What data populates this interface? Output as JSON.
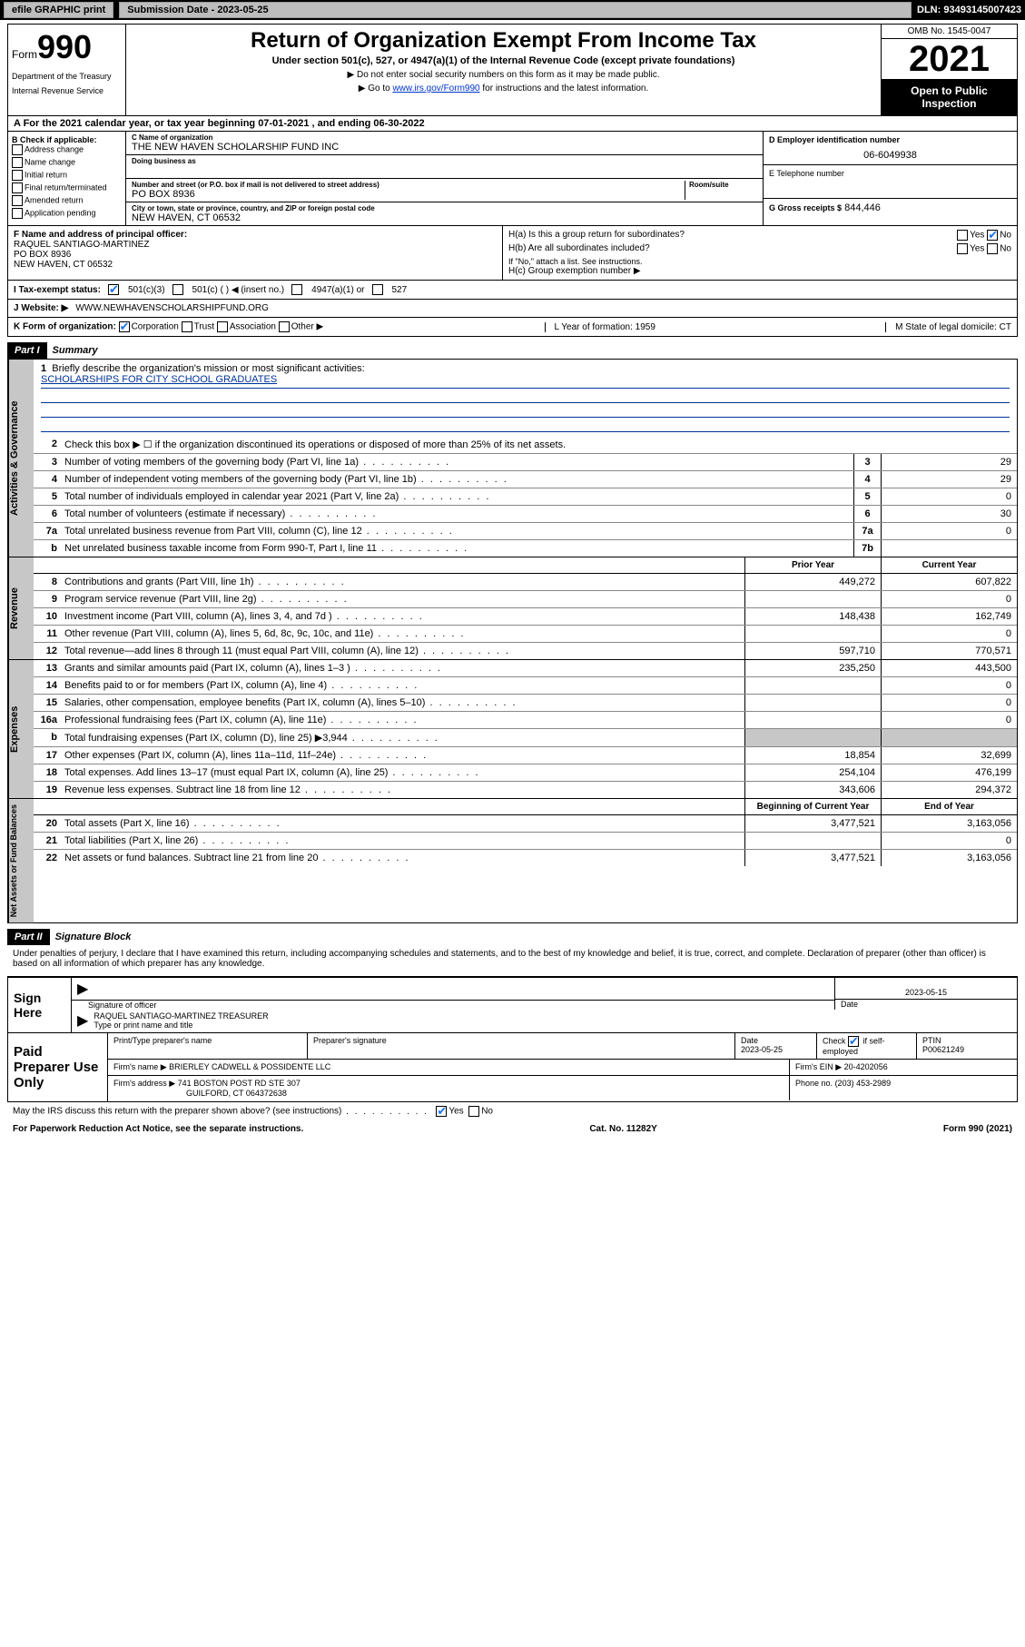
{
  "topbar": {
    "efile": "efile GRAPHIC print",
    "submission_label": "Submission Date - 2023-05-25",
    "dln": "DLN: 93493145007423"
  },
  "header": {
    "form_word": "Form",
    "form_num": "990",
    "dept": "Department of the Treasury",
    "irs": "Internal Revenue Service",
    "title": "Return of Organization Exempt From Income Tax",
    "subtitle": "Under section 501(c), 527, or 4947(a)(1) of the Internal Revenue Code (except private foundations)",
    "note1": "▶ Do not enter social security numbers on this form as it may be made public.",
    "note2_pre": "▶ Go to ",
    "note2_link": "www.irs.gov/Form990",
    "note2_post": " for instructions and the latest information.",
    "omb": "OMB No. 1545-0047",
    "year": "2021",
    "inspect": "Open to Public Inspection"
  },
  "period": {
    "a": "A For the 2021 calendar year, or tax year beginning 07-01-2021   , and ending 06-30-2022"
  },
  "sectionB": {
    "hdr": "B Check if applicable:",
    "opts": [
      "Address change",
      "Name change",
      "Initial return",
      "Final return/terminated",
      "Amended return",
      "Application pending"
    ]
  },
  "sectionC": {
    "name_lbl": "C Name of organization",
    "name": "THE NEW HAVEN SCHOLARSHIP FUND INC",
    "dba_lbl": "Doing business as",
    "street_lbl": "Number and street (or P.O. box if mail is not delivered to street address)",
    "room_lbl": "Room/suite",
    "street": "PO BOX 8936",
    "city_lbl": "City or town, state or province, country, and ZIP or foreign postal code",
    "city": "NEW HAVEN, CT  06532"
  },
  "sectionD": {
    "ein_lbl": "D Employer identification number",
    "ein": "06-6049938",
    "phone_lbl": "E Telephone number",
    "gross_lbl": "G Gross receipts $",
    "gross": "844,446"
  },
  "officer": {
    "f_lbl": "F Name and address of principal officer:",
    "name": "RAQUEL SANTIAGO-MARTINEZ",
    "addr1": "PO BOX 8936",
    "addr2": "NEW HAVEN, CT  06532"
  },
  "groupH": {
    "ha": "H(a)  Is this a group return for subordinates?",
    "hb": "H(b)  Are all subordinates included?",
    "hb_note": "If \"No,\" attach a list. See instructions.",
    "hc": "H(c)  Group exemption number ▶",
    "yes": "Yes",
    "no": "No"
  },
  "status": {
    "i_lbl": "I   Tax-exempt status:",
    "o501c3": "501(c)(3)",
    "o501c": "501(c) (  ) ◀ (insert no.)",
    "o4947": "4947(a)(1) or",
    "o527": "527"
  },
  "website": {
    "j_lbl": "J   Website: ▶",
    "url": "WWW.NEWHAVENSCHOLARSHIPFUND.ORG"
  },
  "orgrow": {
    "k_lbl": "K Form of organization:",
    "corp": "Corporation",
    "trust": "Trust",
    "assoc": "Association",
    "other": "Other ▶",
    "l_lbl": "L Year of formation: 1959",
    "m_lbl": "M State of legal domicile: CT"
  },
  "partI": {
    "hdr": "Part I",
    "title": "Summary"
  },
  "summary": {
    "q1": "Briefly describe the organization's mission or most significant activities:",
    "mission": "SCHOLARSHIPS FOR CITY SCHOOL GRADUATES",
    "q2": "Check this box ▶ ☐  if the organization discontinued its operations or disposed of more than 25% of its net assets.",
    "lines_gov": [
      {
        "n": "3",
        "t": "Number of voting members of the governing body (Part VI, line 1a)",
        "box": "3",
        "v": "29"
      },
      {
        "n": "4",
        "t": "Number of independent voting members of the governing body (Part VI, line 1b)",
        "box": "4",
        "v": "29"
      },
      {
        "n": "5",
        "t": "Total number of individuals employed in calendar year 2021 (Part V, line 2a)",
        "box": "5",
        "v": "0"
      },
      {
        "n": "6",
        "t": "Total number of volunteers (estimate if necessary)",
        "box": "6",
        "v": "30"
      },
      {
        "n": "7a",
        "t": "Total unrelated business revenue from Part VIII, column (C), line 12",
        "box": "7a",
        "v": "0"
      },
      {
        "n": "b",
        "t": "Net unrelated business taxable income from Form 990-T, Part I, line 11",
        "box": "7b",
        "v": ""
      }
    ],
    "prior": "Prior Year",
    "current": "Current Year",
    "rev": [
      {
        "n": "8",
        "t": "Contributions and grants (Part VIII, line 1h)",
        "p": "449,272",
        "c": "607,822"
      },
      {
        "n": "9",
        "t": "Program service revenue (Part VIII, line 2g)",
        "p": "",
        "c": "0"
      },
      {
        "n": "10",
        "t": "Investment income (Part VIII, column (A), lines 3, 4, and 7d )",
        "p": "148,438",
        "c": "162,749"
      },
      {
        "n": "11",
        "t": "Other revenue (Part VIII, column (A), lines 5, 6d, 8c, 9c, 10c, and 11e)",
        "p": "",
        "c": "0"
      },
      {
        "n": "12",
        "t": "Total revenue—add lines 8 through 11 (must equal Part VIII, column (A), line 12)",
        "p": "597,710",
        "c": "770,571"
      }
    ],
    "exp": [
      {
        "n": "13",
        "t": "Grants and similar amounts paid (Part IX, column (A), lines 1–3 )",
        "p": "235,250",
        "c": "443,500"
      },
      {
        "n": "14",
        "t": "Benefits paid to or for members (Part IX, column (A), line 4)",
        "p": "",
        "c": "0"
      },
      {
        "n": "15",
        "t": "Salaries, other compensation, employee benefits (Part IX, column (A), lines 5–10)",
        "p": "",
        "c": "0"
      },
      {
        "n": "16a",
        "t": "Professional fundraising fees (Part IX, column (A), line 11e)",
        "p": "",
        "c": "0"
      },
      {
        "n": "b",
        "t": "Total fundraising expenses (Part IX, column (D), line 25) ▶3,944",
        "p": "grey",
        "c": "grey"
      },
      {
        "n": "17",
        "t": "Other expenses (Part IX, column (A), lines 11a–11d, 11f–24e)",
        "p": "18,854",
        "c": "32,699"
      },
      {
        "n": "18",
        "t": "Total expenses. Add lines 13–17 (must equal Part IX, column (A), line 25)",
        "p": "254,104",
        "c": "476,199"
      },
      {
        "n": "19",
        "t": "Revenue less expenses. Subtract line 18 from line 12",
        "p": "343,606",
        "c": "294,372"
      }
    ],
    "boc": "Beginning of Current Year",
    "eoy": "End of Year",
    "net": [
      {
        "n": "20",
        "t": "Total assets (Part X, line 16)",
        "p": "3,477,521",
        "c": "3,163,056"
      },
      {
        "n": "21",
        "t": "Total liabilities (Part X, line 26)",
        "p": "",
        "c": "0"
      },
      {
        "n": "22",
        "t": "Net assets or fund balances. Subtract line 21 from line 20",
        "p": "3,477,521",
        "c": "3,163,056"
      }
    ]
  },
  "vert": {
    "gov": "Activities & Governance",
    "rev": "Revenue",
    "exp": "Expenses",
    "net": "Net Assets or Fund Balances"
  },
  "partII": {
    "hdr": "Part II",
    "title": "Signature Block"
  },
  "sig": {
    "declare": "Under penalties of perjury, I declare that I have examined this return, including accompanying schedules and statements, and to the best of my knowledge and belief, it is true, correct, and complete. Declaration of preparer (other than officer) is based on all information of which preparer has any knowledge.",
    "sign_here": "Sign Here",
    "sig_officer_lbl": "Signature of officer",
    "date_lbl": "Date",
    "date": "2023-05-15",
    "name_title": "RAQUEL SANTIAGO-MARTINEZ  TREASURER",
    "name_lbl": "Type or print name and title"
  },
  "preparer": {
    "hdr": "Paid Preparer Use Only",
    "print_lbl": "Print/Type preparer's name",
    "prepsig_lbl": "Preparer's signature",
    "date_lbl": "Date",
    "date": "2023-05-25",
    "check_lbl": "Check",
    "self_lbl": "if self-employed",
    "ptin_lbl": "PTIN",
    "ptin": "P00621249",
    "firm_name_lbl": "Firm's name    ▶",
    "firm_name": "BRIERLEY CADWELL & POSSIDENTE LLC",
    "firm_ein_lbl": "Firm's EIN ▶",
    "firm_ein": "20-4202056",
    "firm_addr_lbl": "Firm's address ▶",
    "firm_addr": "741 BOSTON POST RD STE 307",
    "firm_city": "GUILFORD, CT  064372638",
    "phone_lbl": "Phone no.",
    "phone": "(203) 453-2989"
  },
  "footer": {
    "discuss": "May the IRS discuss this return with the preparer shown above? (see instructions)",
    "yes": "Yes",
    "no": "No",
    "pra": "For Paperwork Reduction Act Notice, see the separate instructions.",
    "cat": "Cat. No. 11282Y",
    "form": "Form 990 (2021)"
  }
}
